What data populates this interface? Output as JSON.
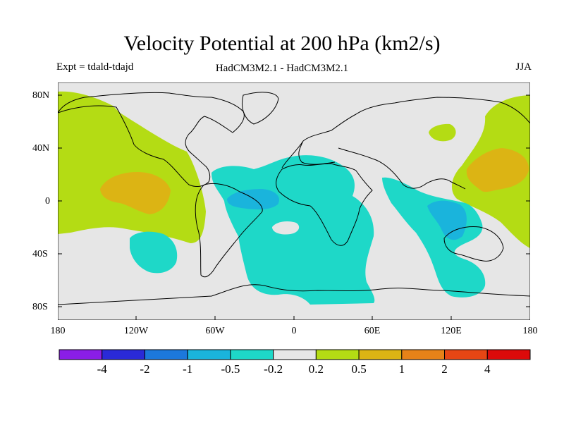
{
  "title": "Velocity Potential at 200 hPa (km2/s)",
  "expt": "Expt = tdald-tdajd",
  "models": "HadCM3M2.1 - HadCM3M2.1",
  "season": "JJA",
  "lat_labels": [
    "80N",
    "40N",
    "0",
    "40S",
    "80S"
  ],
  "lon_labels": [
    "180",
    "120W",
    "60W",
    "0",
    "60E",
    "120E",
    "180"
  ],
  "colorbar": {
    "labels": [
      "-4",
      "-2",
      "-1",
      "-0.5",
      "-0.2",
      "0.2",
      "0.5",
      "1",
      "2",
      "4"
    ],
    "colors": [
      "#8a1ee6",
      "#2a2ad8",
      "#1c78dc",
      "#1ab4dc",
      "#1ed8c8",
      "#e6e6e6",
      "#b4dc14",
      "#dcb414",
      "#e68218",
      "#e64614",
      "#dc0a0a"
    ]
  },
  "map_colors": {
    "neutral": "#e6e6e6",
    "neg_weak": "#1ed8c8",
    "neg_mid": "#1ab4dc",
    "neg_strong": "#1c78dc",
    "pos_weak": "#b4dc14",
    "pos_mid": "#dcb414"
  }
}
